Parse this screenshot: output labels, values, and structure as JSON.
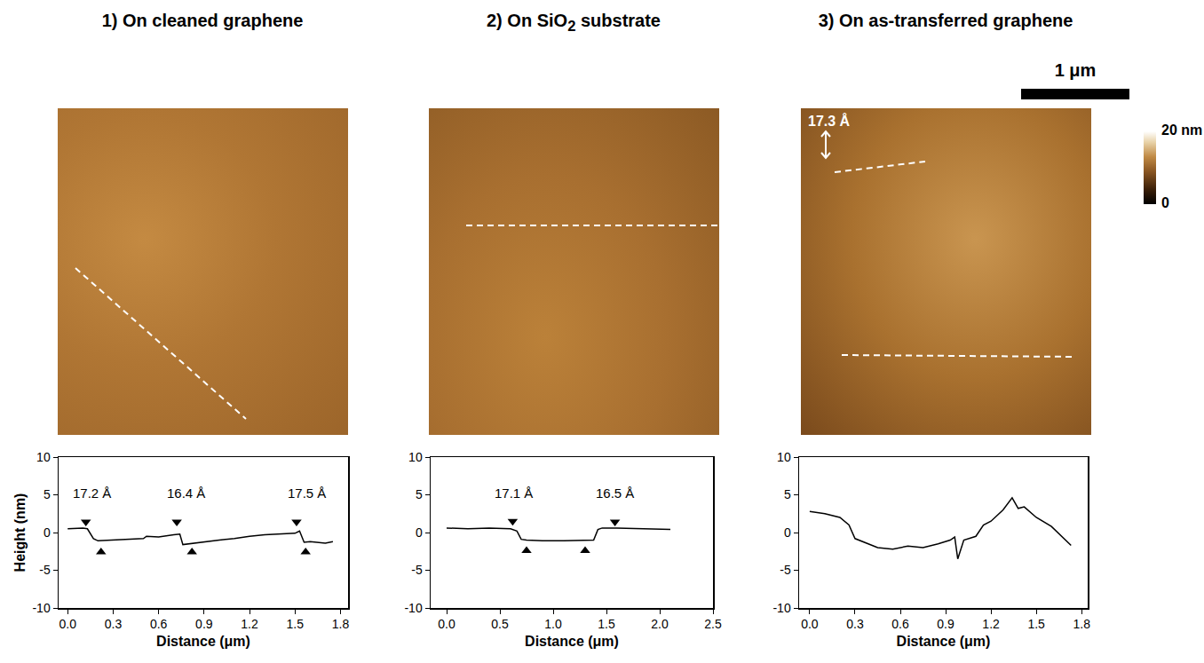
{
  "chart_data": [
    {
      "type": "line",
      "title": "1) On cleaned graphene",
      "x_label": "Distance (μm)",
      "y_label": "Height (nm)",
      "color": "#000000",
      "x": [
        0,
        0.1,
        0.13,
        0.17,
        0.2,
        0.3,
        0.4,
        0.5,
        0.52,
        0.6,
        0.7,
        0.74,
        0.76,
        0.8,
        0.9,
        1.0,
        1.1,
        1.2,
        1.3,
        1.4,
        1.5,
        1.53,
        1.56,
        1.6,
        1.7,
        1.75
      ],
      "values": [
        0.5,
        0.6,
        0.5,
        -0.8,
        -1.1,
        -1.0,
        -0.9,
        -0.8,
        -0.5,
        -0.6,
        -0.3,
        -0.2,
        -1.6,
        -1.5,
        -1.2,
        -1.0,
        -0.8,
        -0.5,
        -0.3,
        -0.2,
        -0.1,
        0.2,
        -1.3,
        -1.2,
        -1.4,
        -1.2
      ],
      "xlim": [
        -0.06,
        1.85
      ],
      "xticks": [
        {
          "value": 0,
          "label": "0.0"
        },
        0.3,
        0.6,
        0.9,
        1.2,
        1.5,
        1.8
      ],
      "ylim": [
        -10,
        10
      ],
      "yticks": [
        -10,
        -5,
        0,
        5,
        10
      ],
      "step_markers": [
        {
          "x": 0.12,
          "y": 1.4,
          "marker": "triangle-down"
        },
        {
          "x": 0.22,
          "y": -2.6,
          "marker": "triangle-up"
        },
        {
          "x": 0.72,
          "y": 1.4,
          "marker": "triangle-down"
        },
        {
          "x": 0.82,
          "y": -2.6,
          "marker": "triangle-up"
        },
        {
          "x": 1.51,
          "y": 1.4,
          "marker": "triangle-down"
        },
        {
          "x": 1.57,
          "y": -2.6,
          "marker": "triangle-up"
        }
      ],
      "annotations": [
        {
          "text": "17.2 Å",
          "x": 0.16,
          "y": 4.0
        },
        {
          "text": "16.4 Å",
          "x": 0.78,
          "y": 4.0
        },
        {
          "text": "17.5 Å",
          "x": 1.58,
          "y": 4.0
        }
      ]
    },
    {
      "type": "line",
      "title": "2) On SiO2 substrate",
      "x_label": "Distance (μm)",
      "color": "#000000",
      "x": [
        0,
        0.2,
        0.4,
        0.6,
        0.66,
        0.7,
        0.75,
        0.9,
        1.1,
        1.3,
        1.38,
        1.42,
        1.46,
        1.6,
        1.8,
        2.0,
        2.1
      ],
      "values": [
        0.6,
        0.5,
        0.6,
        0.5,
        0.2,
        -0.9,
        -1.0,
        -1.1,
        -1.1,
        -1.0,
        -1.0,
        0.4,
        0.6,
        0.6,
        0.5,
        0.4,
        0.4
      ],
      "xlim": [
        -0.15,
        2.5
      ],
      "xticks": [
        {
          "value": 0,
          "label": "0.0"
        },
        0.5,
        {
          "value": 1,
          "label": "1.0"
        },
        1.5,
        {
          "value": 2,
          "label": "2.0"
        },
        2.5
      ],
      "ylim": [
        -10,
        10
      ],
      "yticks": [
        -10,
        -5,
        0,
        5,
        10
      ],
      "step_markers": [
        {
          "x": 0.62,
          "y": 1.5,
          "marker": "triangle-down"
        },
        {
          "x": 0.75,
          "y": -2.4,
          "marker": "triangle-up"
        },
        {
          "x": 1.3,
          "y": -2.4,
          "marker": "triangle-up"
        },
        {
          "x": 1.58,
          "y": 1.4,
          "marker": "triangle-down"
        }
      ],
      "annotations": [
        {
          "text": "17.1 Å",
          "x": 0.63,
          "y": 4.0
        },
        {
          "text": "16.5 Å",
          "x": 1.58,
          "y": 4.0
        }
      ]
    },
    {
      "type": "line",
      "title": "3) On as-transferred graphene",
      "x_label": "Distance (μm)",
      "color": "#000000",
      "x": [
        0,
        0.1,
        0.2,
        0.26,
        0.3,
        0.35,
        0.45,
        0.55,
        0.65,
        0.75,
        0.85,
        0.93,
        0.96,
        0.98,
        1.02,
        1.1,
        1.15,
        1.2,
        1.28,
        1.34,
        1.38,
        1.42,
        1.5,
        1.6,
        1.73
      ],
      "values": [
        2.8,
        2.5,
        2.0,
        1.0,
        -0.8,
        -1.2,
        -2.0,
        -2.2,
        -1.8,
        -2.0,
        -1.5,
        -1.0,
        -0.6,
        -3.5,
        -1.0,
        -0.5,
        1.0,
        1.5,
        3.0,
        4.6,
        3.2,
        3.4,
        2.0,
        0.8,
        -1.7
      ],
      "xlim": [
        -0.07,
        1.84
      ],
      "xticks": [
        {
          "value": 0,
          "label": "0.0"
        },
        0.3,
        0.6,
        0.9,
        1.2,
        1.5,
        1.8
      ],
      "ylim": [
        -10,
        10
      ],
      "yticks": [
        -10,
        -5,
        0,
        5,
        10
      ]
    }
  ],
  "figure": {
    "scale_bar": "1 μm",
    "inset_label": "17.3 Å",
    "colorbar": {
      "range": [
        0,
        20
      ],
      "ticks": [
        0,
        {
          "value": 20,
          "label": "20 nm"
        }
      ]
    }
  }
}
